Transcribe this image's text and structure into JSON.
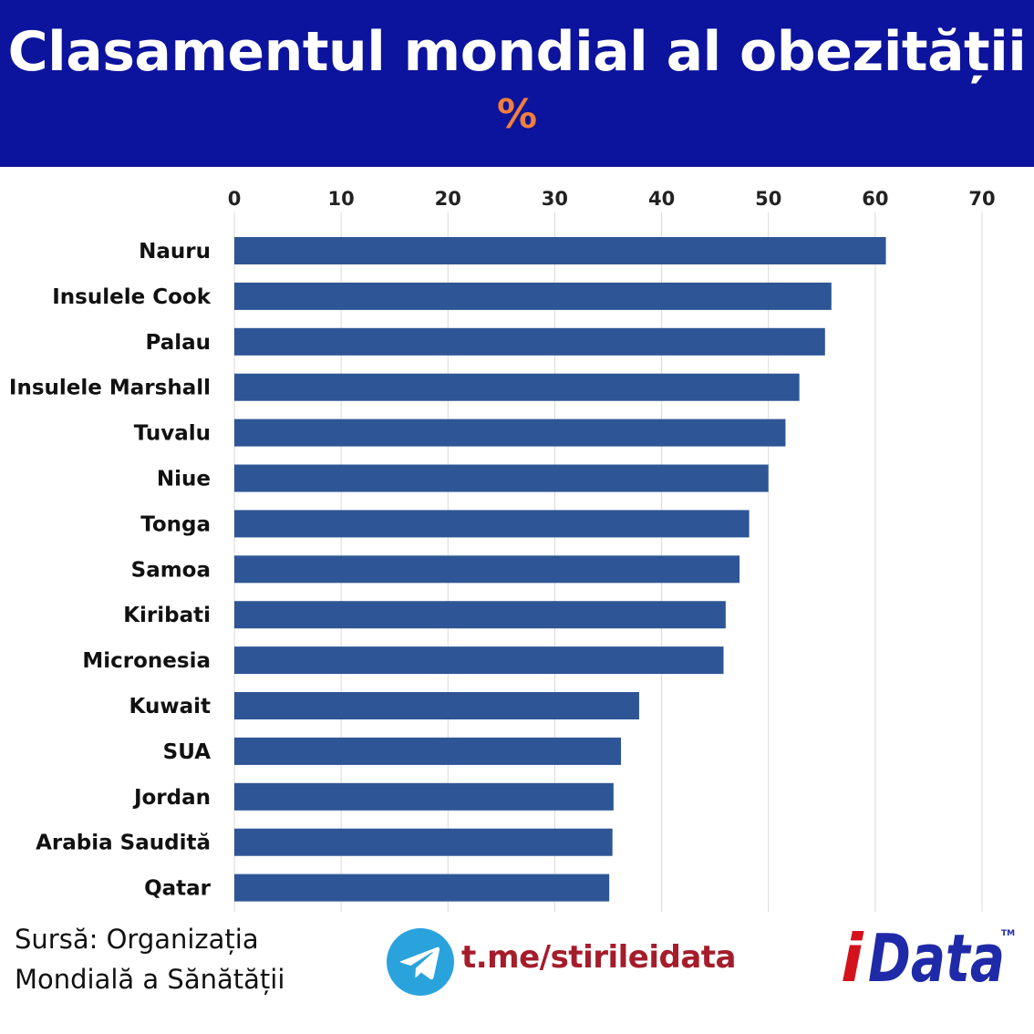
{
  "header": {
    "title": "Clasamentul mondial al obezității",
    "subtitle": "%"
  },
  "colors": {
    "header_bg": "#0c139c",
    "accent": "#f07f3c",
    "bar": "#2e5595",
    "grid": "#d9d9d9",
    "link": "#a51d2b",
    "logo_red": "#d4121b",
    "logo_blue": "#1f2aa8",
    "telegram": "#2aa3dd"
  },
  "chart_data": {
    "type": "bar",
    "orientation": "horizontal",
    "categories": [
      "Nauru",
      "Insulele Cook",
      "Palau",
      "Insulele Marshall",
      "Tuvalu",
      "Niue",
      "Tonga",
      "Samoa",
      "Kiribati",
      "Micronesia",
      "Kuwait",
      "SUA",
      "Jordan",
      "Arabia Saudită",
      "Qatar"
    ],
    "values": [
      61.0,
      55.9,
      55.3,
      52.9,
      51.6,
      50.0,
      48.2,
      47.3,
      46.0,
      45.8,
      37.9,
      36.2,
      35.5,
      35.4,
      35.1
    ],
    "xlim": [
      0,
      70
    ],
    "ticks": [
      0,
      10,
      20,
      30,
      40,
      50,
      60,
      70
    ],
    "axis_position": "top",
    "grid": true
  },
  "footer": {
    "source_line1": "Sursă: Organizația",
    "source_line2": "Mondială a Sănătății",
    "telegram_link": "t.me/stirileidata",
    "telegram_icon": "telegram-plane-icon",
    "logo_text_i": "i",
    "logo_text_rest": "Data",
    "logo_tm": "TM"
  }
}
